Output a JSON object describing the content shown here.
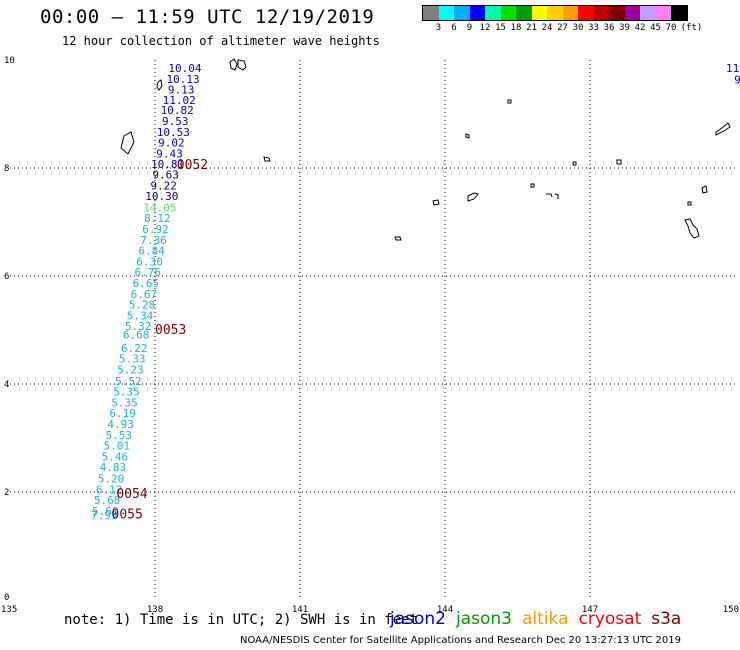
{
  "header": {
    "title": "00:00 – 11:59 UTC 12/19/2019",
    "subtitle": "12 hour collection of altimeter wave heights"
  },
  "legend": {
    "unit": "(ft)",
    "colors": [
      "#808080",
      "#00ffff",
      "#00b0ff",
      "#0000ff",
      "#00ffaa",
      "#00e000",
      "#00a000",
      "#ffff00",
      "#ffd000",
      "#ffa000",
      "#ff0000",
      "#c00000",
      "#800000",
      "#a000a0",
      "#c0a0ff",
      "#ff80ff",
      "#000000"
    ],
    "labels": [
      "3",
      "6",
      "9",
      "12",
      "15",
      "18",
      "21",
      "24",
      "27",
      "30",
      "33",
      "36",
      "39",
      "42",
      "45",
      "70"
    ]
  },
  "axes": {
    "x_ticks": [
      "135",
      "138",
      "141",
      "144",
      "147",
      "150"
    ],
    "y_ticks": [
      "0",
      "2",
      "4",
      "6",
      "8",
      "10"
    ]
  },
  "track_values": [
    {
      "v": "10.04",
      "lon": 138.62,
      "lat": 9.85,
      "color": "#0000cc"
    },
    {
      "v": "10.13",
      "lon": 138.58,
      "lat": 9.65,
      "color": "#0000cc"
    },
    {
      "v": "9.13",
      "lon": 138.54,
      "lat": 9.45,
      "color": "#0000cc"
    },
    {
      "v": "11.02",
      "lon": 138.5,
      "lat": 9.26,
      "color": "#0000cc"
    },
    {
      "v": "10.82",
      "lon": 138.46,
      "lat": 9.07,
      "color": "#0000cc"
    },
    {
      "v": "9.53",
      "lon": 138.42,
      "lat": 8.87,
      "color": "#0000cc"
    },
    {
      "v": "10.53",
      "lon": 138.38,
      "lat": 8.67,
      "color": "#0000cc"
    },
    {
      "v": "9.02",
      "lon": 138.34,
      "lat": 8.47,
      "color": "#0000cc"
    },
    {
      "v": "9.43",
      "lon": 138.3,
      "lat": 8.27,
      "color": "#0000cc"
    },
    {
      "v": "10.81",
      "lon": 138.26,
      "lat": 8.07,
      "color": "#000080"
    },
    {
      "v": "9.63",
      "lon": 138.22,
      "lat": 7.88,
      "color": "#000080"
    },
    {
      "v": "9.22",
      "lon": 138.18,
      "lat": 7.68,
      "color": "#000080"
    },
    {
      "v": "10.30",
      "lon": 138.14,
      "lat": 7.48,
      "color": "#000080"
    },
    {
      "v": "14.05",
      "lon": 138.1,
      "lat": 7.27,
      "color": "#66dd66"
    },
    {
      "v": "8.12",
      "lon": 138.05,
      "lat": 7.07,
      "color": "#1fb0e0"
    },
    {
      "v": "6.92",
      "lon": 138.01,
      "lat": 6.87,
      "color": "#1fb0e0"
    },
    {
      "v": "7.36",
      "lon": 137.97,
      "lat": 6.67,
      "color": "#1fb0e0"
    },
    {
      "v": "6.84",
      "lon": 137.93,
      "lat": 6.47,
      "color": "#1fb0e0"
    },
    {
      "v": "6.30",
      "lon": 137.89,
      "lat": 6.27,
      "color": "#1fb0e0"
    },
    {
      "v": "6.76",
      "lon": 137.85,
      "lat": 6.07,
      "color": "#1fb0e0"
    },
    {
      "v": "6.65",
      "lon": 137.81,
      "lat": 5.87,
      "color": "#1fb0e0"
    },
    {
      "v": "6.67",
      "lon": 137.77,
      "lat": 5.67,
      "color": "#1fb0e0"
    },
    {
      "v": "5.28",
      "lon": 137.73,
      "lat": 5.47,
      "color": "#1fb0e0"
    },
    {
      "v": "5.34",
      "lon": 137.69,
      "lat": 5.27,
      "color": "#1fb0e0"
    },
    {
      "v": "5.32",
      "lon": 137.65,
      "lat": 5.07,
      "color": "#1fb0e0"
    },
    {
      "v": "6.68",
      "lon": 137.61,
      "lat": 4.92,
      "color": "#1fb0e0"
    },
    {
      "v": "6.22",
      "lon": 137.57,
      "lat": 4.67,
      "color": "#1fb0e0"
    },
    {
      "v": "5.33",
      "lon": 137.53,
      "lat": 4.47,
      "color": "#1fb0e0"
    },
    {
      "v": "5.23",
      "lon": 137.49,
      "lat": 4.27,
      "color": "#1fb0e0"
    },
    {
      "v": "5.52",
      "lon": 137.45,
      "lat": 4.06,
      "color": "#1fb0e0"
    },
    {
      "v": "5.35",
      "lon": 137.41,
      "lat": 3.86,
      "color": "#1fb0e0"
    },
    {
      "v": "5.35",
      "lon": 137.37,
      "lat": 3.66,
      "color": "#1fb0e0"
    },
    {
      "v": "6.19",
      "lon": 137.33,
      "lat": 3.46,
      "color": "#1fb0e0"
    },
    {
      "v": "4.93",
      "lon": 137.29,
      "lat": 3.26,
      "color": "#1fb0e0"
    },
    {
      "v": "5.53",
      "lon": 137.25,
      "lat": 3.06,
      "color": "#1fb0e0"
    },
    {
      "v": "5.01",
      "lon": 137.21,
      "lat": 2.86,
      "color": "#1fb0e0"
    },
    {
      "v": "5.46",
      "lon": 137.17,
      "lat": 2.66,
      "color": "#1fb0e0"
    },
    {
      "v": "4.83",
      "lon": 137.13,
      "lat": 2.46,
      "color": "#1fb0e0"
    },
    {
      "v": "5.20",
      "lon": 137.09,
      "lat": 2.25,
      "color": "#1fb0e0"
    },
    {
      "v": "6.12",
      "lon": 137.05,
      "lat": 2.05,
      "color": "#1fb0e0"
    },
    {
      "v": "5.68",
      "lon": 137.01,
      "lat": 1.85,
      "color": "#1fb0e0"
    },
    {
      "v": "5.60",
      "lon": 136.97,
      "lat": 1.65,
      "color": "#1fb0e0"
    },
    {
      "v": "7.99",
      "lon": 136.95,
      "lat": 1.57,
      "color": "#1fb0e0"
    }
  ],
  "track_right": [
    {
      "v": "11",
      "lon": 149.95,
      "lat": 9.85,
      "color": "#0000cc"
    },
    {
      "v": "9",
      "lon": 150.05,
      "lat": 9.64,
      "color": "#0000cc"
    }
  ],
  "time_labels": [
    {
      "t": "0052",
      "lon": 138.45,
      "lat": 8.07
    },
    {
      "t": "0053",
      "lon": 138.0,
      "lat": 5.02
    },
    {
      "t": "0054",
      "lon": 137.2,
      "lat": 1.98
    },
    {
      "t": "0055",
      "lon": 137.1,
      "lat": 1.6
    }
  ],
  "footer": {
    "note": "note: 1) Time is in UTC; 2) SWH is in feet",
    "credit": "NOAA/NESDIS Center for Satellite Applications and Research   Dec 20 13:27:13 UTC 2019"
  },
  "satellites": [
    {
      "name": "jason2",
      "color": "#0000cc"
    },
    {
      "name": "jason3",
      "color": "#009900"
    },
    {
      "name": "altika",
      "color": "#ff9900"
    },
    {
      "name": "cryosat",
      "color": "#ff0000"
    },
    {
      "name": "s3a",
      "color": "#800000"
    }
  ]
}
